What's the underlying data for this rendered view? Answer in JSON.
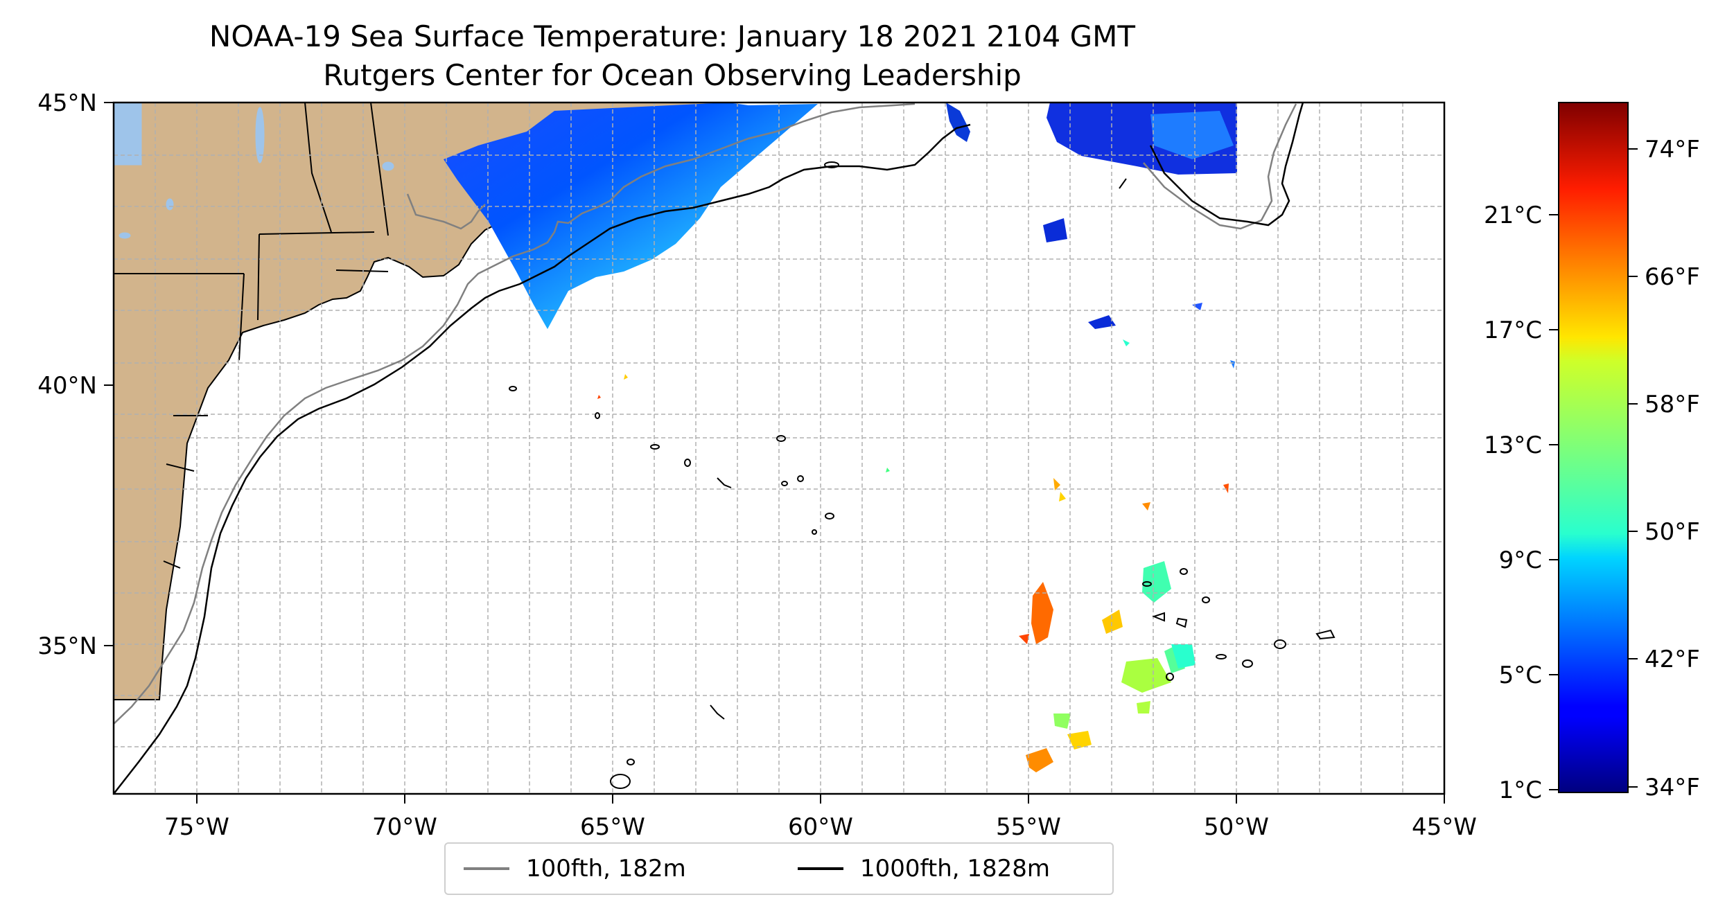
{
  "title": "NOAA-19 Sea Surface Temperature: January 18 2021 2104 GMT",
  "subtitle": "Rutgers Center for Ocean Observing Leadership",
  "lon_ticks": [
    "75°W",
    "70°W",
    "65°W",
    "60°W",
    "55°W",
    "50°W",
    "45°W"
  ],
  "lat_ticks": [
    "45°N",
    "40°N",
    "35°N"
  ],
  "colorbar": {
    "celsius_ticks": [
      "21°C",
      "17°C",
      "13°C",
      "9°C",
      "5°C",
      "1°C"
    ],
    "fahrenheit_ticks": [
      "74°F",
      "66°F",
      "58°F",
      "50°F",
      "42°F",
      "34°F"
    ],
    "colormap": "jet"
  },
  "legend": {
    "items": [
      {
        "label": "100fth, 182m",
        "color": "#808080"
      },
      {
        "label": "1000fth, 1828m",
        "color": "#000000"
      }
    ]
  },
  "colors": {
    "land": "#d2b48c",
    "lakes": "#9ec4ea",
    "isobath_100": "#808080",
    "isobath_1000": "#000000",
    "grid": "#b0b0b0"
  }
}
